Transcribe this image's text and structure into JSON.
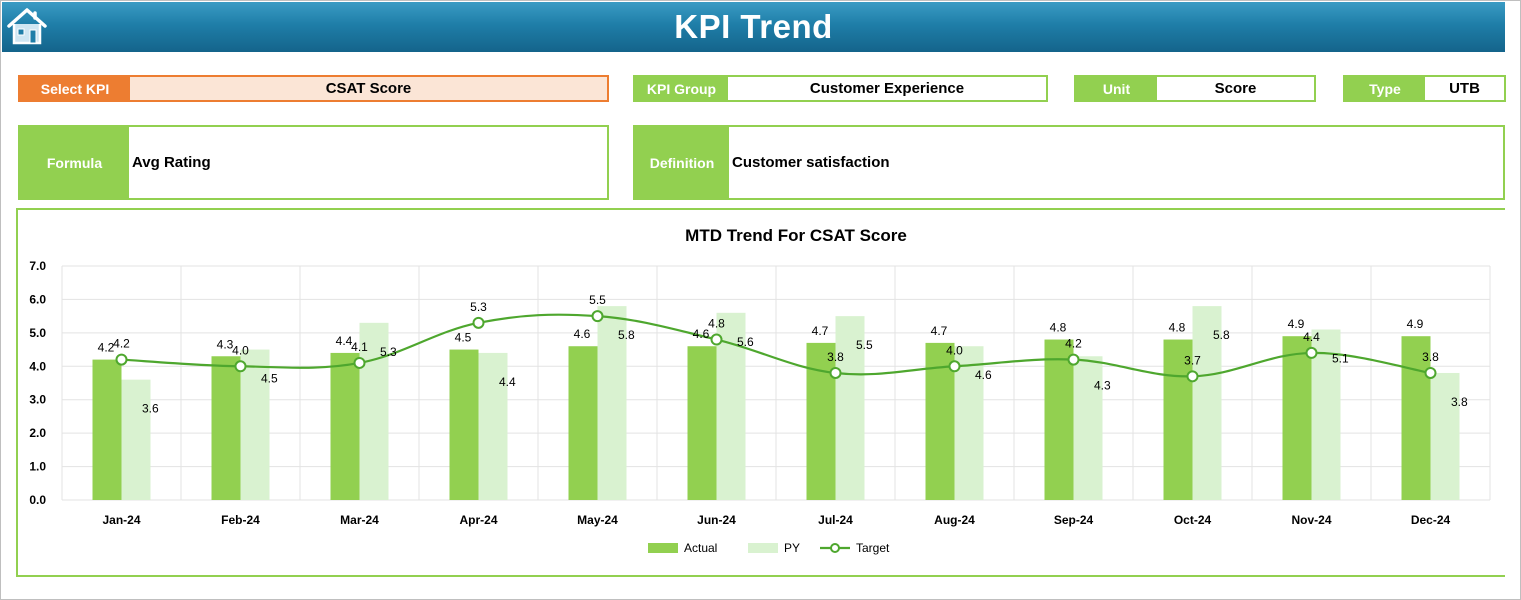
{
  "header": {
    "title": "KPI Trend",
    "home_icon": "home-icon",
    "gradient_top": "#3a9bc4",
    "gradient_bottom": "#14648b"
  },
  "selector": {
    "select_kpi_label": "Select KPI",
    "select_kpi_value": "CSAT Score",
    "kpi_group_label": "KPI Group",
    "kpi_group_value": "Customer Experience",
    "unit_label": "Unit",
    "unit_value": "Score",
    "type_label": "Type",
    "type_value": "UTB"
  },
  "details": {
    "formula_label": "Formula",
    "formula_value": "Avg Rating",
    "definition_label": "Definition",
    "definition_value": "Customer satisfaction"
  },
  "colors": {
    "accent_green": "#92d050",
    "accent_orange": "#ed7d31",
    "py_green": "#d9f2d0",
    "target_line": "#4ea72e"
  },
  "chart_data": {
    "type": "bar",
    "title": "MTD Trend For CSAT Score",
    "categories": [
      "Jan-24",
      "Feb-24",
      "Mar-24",
      "Apr-24",
      "May-24",
      "Jun-24",
      "Jul-24",
      "Aug-24",
      "Sep-24",
      "Oct-24",
      "Nov-24",
      "Dec-24"
    ],
    "series": [
      {
        "name": "Actual",
        "kind": "bar",
        "color": "#92d050",
        "values": [
          4.2,
          4.3,
          4.4,
          4.5,
          4.6,
          4.6,
          4.7,
          4.7,
          4.8,
          4.8,
          4.9,
          4.9
        ]
      },
      {
        "name": "PY",
        "kind": "bar",
        "color": "#d9f2d0",
        "values": [
          3.6,
          4.5,
          5.3,
          4.4,
          5.8,
          5.6,
          5.5,
          4.6,
          4.3,
          5.8,
          5.1,
          3.8
        ]
      },
      {
        "name": "Target",
        "kind": "line",
        "color": "#4ea72e",
        "values": [
          4.2,
          4.0,
          4.1,
          5.3,
          5.5,
          4.8,
          3.8,
          4.0,
          4.2,
          3.7,
          4.4,
          3.8
        ]
      }
    ],
    "ylim": [
      0,
      7
    ],
    "yticks": [
      "0.0",
      "1.0",
      "2.0",
      "3.0",
      "4.0",
      "5.0",
      "6.0",
      "7.0"
    ],
    "grid": true,
    "legend_position": "bottom"
  }
}
